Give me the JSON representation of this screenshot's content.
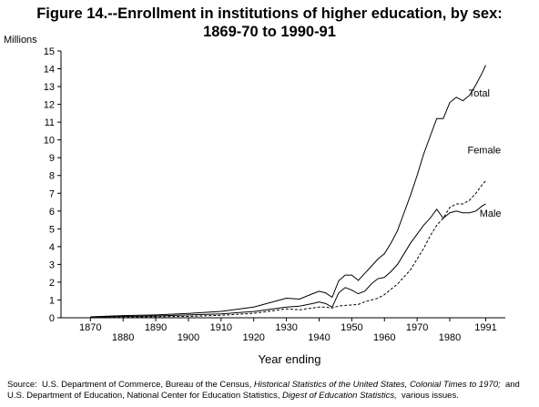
{
  "chart_data": {
    "type": "line",
    "title": [
      "Figure 14.--Enrollment in institutions of higher education, by sex:",
      "1869-70 to 1990-91"
    ],
    "y_label": "Millions",
    "x_label": "Year ending",
    "x": [
      1870,
      1880,
      1890,
      1900,
      1910,
      1920,
      1930,
      1934,
      1938,
      1940,
      1942,
      1944,
      1946,
      1948,
      1950,
      1952,
      1954,
      1956,
      1958,
      1960,
      1962,
      1964,
      1966,
      1968,
      1970,
      1972,
      1974,
      1976,
      1978,
      1980,
      1982,
      1984,
      1986,
      1988,
      1990,
      1991
    ],
    "series": [
      {
        "name": "Total",
        "color": "#000000",
        "line_style": "solid",
        "values": [
          0.05,
          0.12,
          0.16,
          0.24,
          0.36,
          0.6,
          1.1,
          1.05,
          1.35,
          1.49,
          1.4,
          1.15,
          2.08,
          2.4,
          2.4,
          2.1,
          2.5,
          2.9,
          3.3,
          3.6,
          4.2,
          4.9,
          5.9,
          6.9,
          8.0,
          9.2,
          10.2,
          11.2,
          11.2,
          12.1,
          12.4,
          12.2,
          12.5,
          13.1,
          13.8,
          14.2
        ]
      },
      {
        "name": "Female",
        "color": "#000000",
        "line_style": "dashed",
        "values": [
          0.01,
          0.04,
          0.06,
          0.08,
          0.14,
          0.25,
          0.5,
          0.45,
          0.55,
          0.6,
          0.6,
          0.55,
          0.66,
          0.7,
          0.72,
          0.75,
          0.9,
          1.0,
          1.1,
          1.3,
          1.6,
          1.9,
          2.3,
          2.7,
          3.3,
          3.9,
          4.6,
          5.2,
          5.6,
          6.2,
          6.4,
          6.4,
          6.6,
          7.0,
          7.5,
          7.7
        ]
      },
      {
        "name": "Male",
        "color": "#000000",
        "line_style": "solid",
        "values": [
          0.04,
          0.08,
          0.1,
          0.16,
          0.22,
          0.35,
          0.6,
          0.65,
          0.8,
          0.89,
          0.8,
          0.6,
          1.4,
          1.7,
          1.56,
          1.35,
          1.5,
          1.9,
          2.2,
          2.27,
          2.6,
          3.0,
          3.6,
          4.2,
          4.7,
          5.2,
          5.6,
          6.1,
          5.6,
          5.9,
          6.0,
          5.9,
          5.9,
          6.0,
          6.3,
          6.4
        ]
      }
    ],
    "xlim": [
      1861,
      1997
    ],
    "xticks": [
      1870,
      1880,
      1890,
      1900,
      1910,
      1920,
      1930,
      1940,
      1950,
      1960,
      1970,
      1980,
      1991
    ],
    "ylim": [
      0,
      15
    ],
    "yticks": [
      0,
      1,
      2,
      3,
      4,
      5,
      6,
      7,
      8,
      9,
      10,
      11,
      12,
      13,
      14,
      15
    ],
    "grid": false,
    "source": [
      [
        {
          "text": "Source:  U.S. Department of Commerce, Bureau of the Census, ",
          "italic": false
        },
        {
          "text": "Historical Statistics of the United States, Colonial Times to 1970;",
          "italic": true
        },
        {
          "text": "  and",
          "italic": false
        }
      ],
      [
        {
          "text": "U.S. Department of Education, National Center for Education Statistics, ",
          "italic": false
        },
        {
          "text": "Digest of Education Statistics,",
          "italic": true
        },
        {
          "text": "  various issues.",
          "italic": false
        }
      ]
    ]
  }
}
